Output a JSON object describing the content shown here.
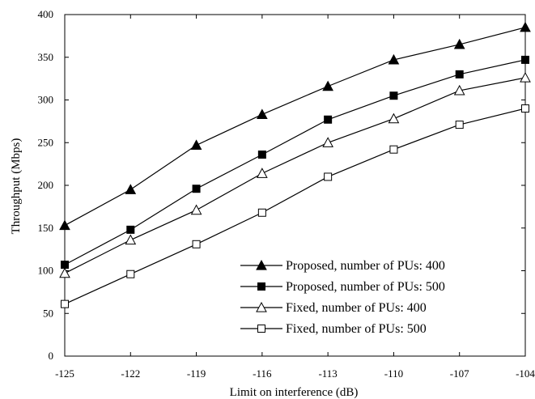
{
  "chart_data": {
    "type": "line",
    "title": "",
    "xlabel": "Limit on interference (dB)",
    "ylabel": "Throughput (Mbps)",
    "x": [
      -125,
      -122,
      -119,
      -116,
      -113,
      -110,
      -107,
      -104
    ],
    "xlim": [
      -125,
      -104
    ],
    "ylim": [
      0,
      400
    ],
    "xticks": [
      -125,
      -122,
      -119,
      -116,
      -113,
      -110,
      -107,
      -104
    ],
    "yticks": [
      0,
      50,
      100,
      150,
      200,
      250,
      300,
      350,
      400
    ],
    "grid": false,
    "legend_position": "bottom-right",
    "series": [
      {
        "name": "Proposed, number of PUs: 400",
        "marker": "filled-triangle",
        "color": "#000000",
        "values": [
          153,
          195,
          247,
          283,
          316,
          347,
          365,
          385
        ]
      },
      {
        "name": "Proposed, number of PUs: 500",
        "marker": "filled-square",
        "color": "#000000",
        "values": [
          107,
          148,
          196,
          236,
          277,
          305,
          330,
          347
        ]
      },
      {
        "name": "Fixed, number of PUs: 400",
        "marker": "open-triangle",
        "color": "#000000",
        "values": [
          97,
          136,
          171,
          214,
          250,
          278,
          311,
          326
        ]
      },
      {
        "name": "Fixed, number of PUs: 500",
        "marker": "open-square",
        "color": "#000000",
        "values": [
          61,
          96,
          131,
          168,
          210,
          242,
          271,
          290
        ]
      }
    ]
  }
}
